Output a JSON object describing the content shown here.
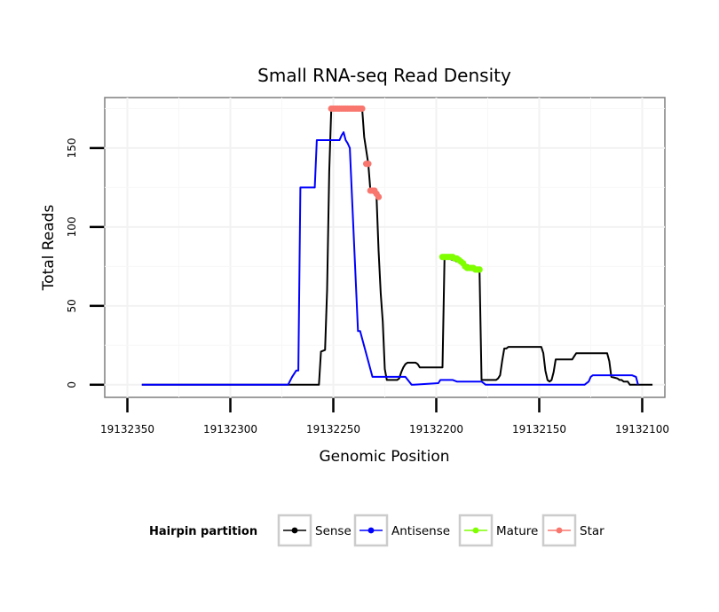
{
  "chart_data": {
    "type": "line",
    "title": "Small RNA-seq Read Density",
    "xlabel": "Genomic Position",
    "ylabel": "Total Reads",
    "xlim": [
      19132361,
      19132089
    ],
    "ylim": [
      -8,
      182
    ],
    "x_ticks": [
      19132350,
      19132300,
      19132250,
      19132200,
      19132150,
      19132100
    ],
    "x_tick_labels": [
      "19132350",
      "19132300",
      "19132250",
      "19132200",
      "19132150",
      "19132100"
    ],
    "y_ticks": [
      0,
      50,
      100,
      150
    ],
    "y_tick_labels": [
      "0",
      "50",
      "100",
      "150"
    ],
    "grid": true,
    "legend": {
      "title": "Hairpin partition",
      "position": "bottom",
      "entries": [
        {
          "label": "Sense",
          "color": "#000000"
        },
        {
          "label": "Antisense",
          "color": "#0000ff"
        },
        {
          "label": "Mature",
          "color": "#7fff00"
        },
        {
          "label": "Star",
          "color": "#f8766d"
        }
      ]
    },
    "series": [
      {
        "name": "Sense",
        "color": "#000000",
        "kind": "line",
        "x": [
          19132343,
          19132257,
          19132256,
          19132254,
          19132253,
          19132252,
          19132251,
          19132250,
          19132236,
          19132235,
          19132233,
          19132232,
          19132230,
          19132229,
          19132228,
          19132227,
          19132226,
          19132225,
          19132224,
          19132219,
          19132218,
          19132217,
          19132216,
          19132215,
          19132214,
          19132213,
          19132210,
          19132209,
          19132208,
          19132205,
          19132197,
          19132196,
          19132179,
          19132178,
          19132177,
          19132171,
          19132170,
          19132169,
          19132168,
          19132167,
          19132166,
          19132165,
          19132149,
          19132148,
          19132147,
          19132146,
          19132145,
          19132144,
          19132143,
          19132142,
          19132141,
          19132134,
          19132133,
          19132132,
          19132117,
          19132116,
          19132115,
          19132112,
          19132111,
          19132110,
          19132109,
          19132107,
          19132106,
          19132105,
          19132095
        ],
        "y": [
          0,
          0,
          21,
          22,
          60,
          135,
          175,
          175,
          175,
          157,
          140,
          123,
          121,
          119,
          85,
          58,
          40,
          10,
          3,
          3,
          4,
          8,
          11,
          13,
          14,
          14,
          14,
          13,
          11,
          11,
          11,
          81,
          73,
          3,
          3,
          3,
          4,
          6,
          15,
          23,
          23,
          24,
          24,
          20,
          9,
          3,
          2,
          3,
          8,
          16,
          16,
          16,
          18,
          20,
          20,
          15,
          5,
          4,
          3,
          3,
          2,
          2,
          0,
          0,
          0
        ]
      },
      {
        "name": "Antisense",
        "color": "#0000ff",
        "kind": "line",
        "x": [
          19132343,
          19132272,
          19132270,
          19132268,
          19132267,
          19132266,
          19132259,
          19132258,
          19132247,
          19132246,
          19132245,
          19132244,
          19132243,
          19132242,
          19132238,
          19132237,
          19132231,
          19132230,
          19132215,
          19132212,
          19132211,
          19132199,
          19132198,
          19132192,
          19132190,
          19132178,
          19132176,
          19132147,
          19132145,
          19132128,
          19132126,
          19132125,
          19132124,
          19132105,
          19132103,
          19132102
        ],
        "y": [
          0,
          0,
          5,
          9,
          9,
          125,
          125,
          155,
          155,
          158,
          160,
          155,
          153,
          150,
          34,
          34,
          5,
          5,
          5,
          0,
          0,
          1,
          3,
          3,
          2,
          2,
          0,
          0,
          0,
          0,
          2,
          5,
          6,
          6,
          5,
          0
        ]
      },
      {
        "name": "Mature",
        "color": "#7fff00",
        "kind": "points",
        "x": [
          19132197,
          19132196,
          19132195,
          19132194,
          19132193,
          19132192,
          19132191,
          19132190,
          19132189,
          19132188,
          19132187,
          19132186,
          19132185,
          19132184,
          19132183,
          19132182,
          19132181,
          19132180,
          19132179
        ],
        "y": [
          81,
          81,
          81,
          81,
          81,
          81,
          80,
          80,
          79,
          78,
          77,
          75,
          74,
          74,
          74,
          74,
          73,
          73,
          73
        ]
      },
      {
        "name": "Star",
        "color": "#f8766d",
        "kind": "points",
        "x": [
          19132251,
          19132250,
          19132249,
          19132248,
          19132247,
          19132246,
          19132245,
          19132244,
          19132243,
          19132242,
          19132241,
          19132240,
          19132239,
          19132238,
          19132237,
          19132236,
          19132234,
          19132233,
          19132232,
          19132231,
          19132230,
          19132229,
          19132228
        ],
        "y": [
          175,
          175,
          175,
          175,
          175,
          175,
          175,
          175,
          175,
          175,
          175,
          175,
          175,
          175,
          175,
          175,
          140,
          140,
          123,
          123,
          123,
          121,
          119
        ]
      }
    ]
  }
}
